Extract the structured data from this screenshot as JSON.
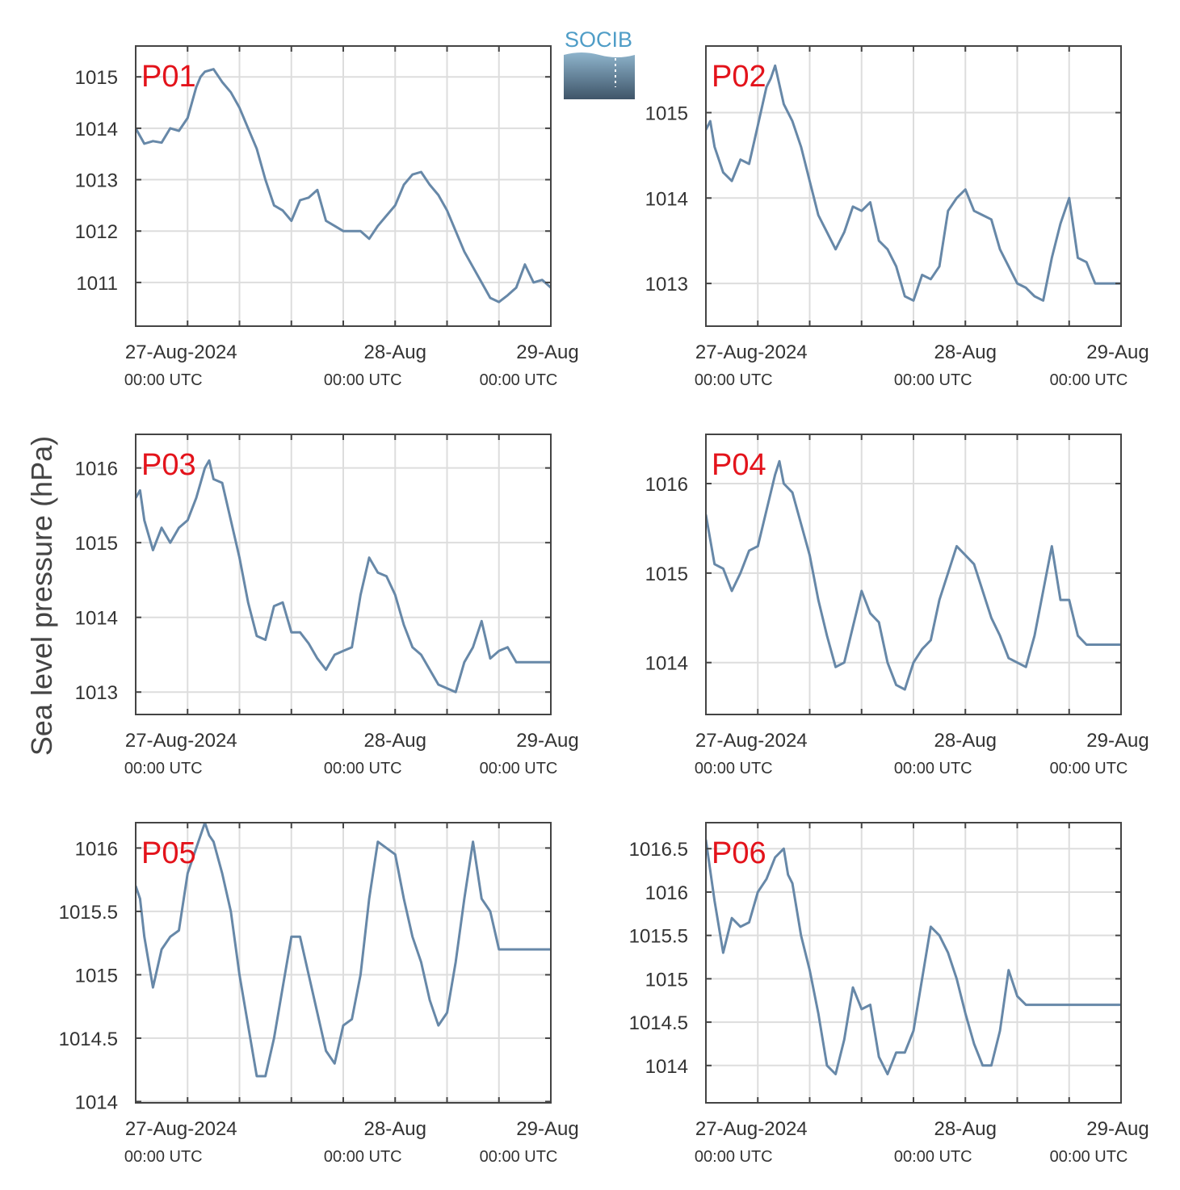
{
  "figure": {
    "ylabel": "Sea level pressure (hPa)",
    "logo_text": "SOCIB",
    "colors": {
      "line": "#6788a8",
      "panel_label": "#e3131b",
      "grid": "#dddddd",
      "frame": "#444444",
      "logo_text": "#4f9dc7",
      "logo_top": "#8eb4cc",
      "logo_bottom": "#3f5569"
    }
  },
  "x_axis": {
    "ticks": [
      {
        "date": "27-Aug-2024",
        "time": "00:00 UTC",
        "hour": 0
      },
      {
        "date": "28-Aug",
        "time": "00:00 UTC",
        "hour": 24
      },
      {
        "date": "29-Aug",
        "time": "00:00 UTC",
        "hour": 48
      }
    ]
  },
  "chart_data": [
    {
      "type": "line",
      "title": "P01",
      "x_unit": "hours since 27-Aug-2024 00:00 UTC",
      "xlim": [
        -6,
        42
      ],
      "ylim": [
        1010.15,
        1015.6
      ],
      "yticks": [
        1011,
        1012,
        1013,
        1014,
        1015
      ],
      "ytick_labels": [
        "1011",
        "1012",
        "1013",
        "1014",
        "1015"
      ],
      "grid": true,
      "series": [
        {
          "x": [
            -6,
            -5,
            -4,
            -3,
            -2,
            -1,
            0,
            1,
            1.5,
            2,
            3,
            4,
            5,
            6,
            7,
            8,
            9,
            10,
            11,
            12,
            13,
            14,
            15,
            16,
            17,
            18,
            19,
            20,
            21,
            22,
            23,
            24,
            25,
            26,
            27,
            28,
            29,
            30,
            31,
            32,
            33,
            34,
            35,
            36,
            37,
            38,
            39,
            40,
            41,
            42
          ],
          "y": [
            1014.0,
            1013.7,
            1013.75,
            1013.72,
            1014.0,
            1013.95,
            1014.2,
            1014.8,
            1015.0,
            1015.1,
            1015.15,
            1014.9,
            1014.7,
            1014.4,
            1014.0,
            1013.6,
            1013.0,
            1012.5,
            1012.4,
            1012.2,
            1012.6,
            1012.65,
            1012.8,
            1012.2,
            1012.1,
            1012.0,
            1012.0,
            1012.0,
            1011.85,
            1012.1,
            1012.3,
            1012.5,
            1012.9,
            1013.1,
            1013.15,
            1012.9,
            1012.7,
            1012.4,
            1012.0,
            1011.6,
            1011.3,
            1011.0,
            1010.7,
            1010.62,
            1010.75,
            1010.9,
            1011.35,
            1011.0,
            1011.05,
            1010.9
          ]
        }
      ]
    },
    {
      "type": "line",
      "title": "P02",
      "x_unit": "hours since 27-Aug-2024 00:00 UTC",
      "xlim": [
        -6,
        42
      ],
      "ylim": [
        1012.5,
        1015.78
      ],
      "yticks": [
        1013,
        1014,
        1015
      ],
      "ytick_labels": [
        "1013",
        "1014",
        "1015"
      ],
      "grid": true,
      "series": [
        {
          "x": [
            -6,
            -5.5,
            -5,
            -4,
            -3,
            -2,
            -1,
            0,
            1,
            1.5,
            2,
            3,
            4,
            5,
            6,
            7,
            8,
            9,
            10,
            11,
            12,
            13,
            14,
            15,
            16,
            17,
            18,
            19,
            20,
            21,
            22,
            23,
            24,
            25,
            26,
            27,
            28,
            29,
            30,
            31,
            32,
            33,
            34,
            35,
            36,
            37,
            38,
            39,
            40,
            41,
            42
          ],
          "y": [
            1014.8,
            1014.9,
            1014.6,
            1014.3,
            1014.2,
            1014.45,
            1014.4,
            1014.85,
            1015.3,
            1015.4,
            1015.55,
            1015.1,
            1014.9,
            1014.6,
            1014.2,
            1013.8,
            1013.6,
            1013.4,
            1013.6,
            1013.9,
            1013.85,
            1013.95,
            1013.5,
            1013.4,
            1013.2,
            1012.85,
            1012.8,
            1013.1,
            1013.05,
            1013.2,
            1013.85,
            1014.0,
            1014.1,
            1013.85,
            1013.8,
            1013.75,
            1013.4,
            1013.2,
            1013.0,
            1012.95,
            1012.85,
            1012.8,
            1013.3,
            1013.7,
            1014.0,
            1013.3,
            1013.25,
            1013.0,
            1013.0,
            1013.0,
            1013.0
          ]
        }
      ]
    },
    {
      "type": "line",
      "title": "P03",
      "x_unit": "hours since 27-Aug-2024 00:00 UTC",
      "xlim": [
        -6,
        42
      ],
      "ylim": [
        1012.7,
        1016.45
      ],
      "yticks": [
        1013,
        1014,
        1015,
        1016
      ],
      "ytick_labels": [
        "1013",
        "1014",
        "1015",
        "1016"
      ],
      "grid": true,
      "series": [
        {
          "x": [
            -6,
            -5.5,
            -5,
            -4,
            -3,
            -2,
            -1,
            0,
            1,
            2,
            2.5,
            3,
            4,
            5,
            6,
            7,
            8,
            9,
            10,
            11,
            12,
            13,
            14,
            15,
            16,
            17,
            18,
            19,
            20,
            21,
            22,
            23,
            24,
            25,
            26,
            27,
            28,
            29,
            30,
            31,
            32,
            33,
            34,
            35,
            36,
            37,
            38,
            39,
            40,
            41,
            42
          ],
          "y": [
            1015.6,
            1015.7,
            1015.3,
            1014.9,
            1015.2,
            1015.0,
            1015.2,
            1015.3,
            1015.6,
            1016.0,
            1016.1,
            1015.85,
            1015.8,
            1015.3,
            1014.8,
            1014.2,
            1013.75,
            1013.7,
            1014.15,
            1014.2,
            1013.8,
            1013.8,
            1013.65,
            1013.45,
            1013.3,
            1013.5,
            1013.55,
            1013.6,
            1014.3,
            1014.8,
            1014.6,
            1014.55,
            1014.3,
            1013.9,
            1013.6,
            1013.5,
            1013.3,
            1013.1,
            1013.05,
            1013.0,
            1013.4,
            1013.6,
            1013.95,
            1013.45,
            1013.55,
            1013.6,
            1013.4,
            1013.4,
            1013.4,
            1013.4,
            1013.4
          ]
        }
      ]
    },
    {
      "type": "line",
      "title": "P04",
      "x_unit": "hours since 27-Aug-2024 00:00 UTC",
      "xlim": [
        -6,
        42
      ],
      "ylim": [
        1013.42,
        1016.55
      ],
      "yticks": [
        1014,
        1015,
        1016
      ],
      "ytick_labels": [
        "1014",
        "1015",
        "1016"
      ],
      "grid": true,
      "series": [
        {
          "x": [
            -6,
            -5,
            -4,
            -3,
            -2,
            -1,
            0,
            1,
            2,
            2.5,
            3,
            4,
            5,
            6,
            7,
            8,
            9,
            10,
            11,
            12,
            13,
            14,
            15,
            16,
            17,
            18,
            19,
            20,
            21,
            22,
            23,
            24,
            25,
            26,
            27,
            28,
            29,
            30,
            31,
            32,
            33,
            34,
            35,
            36,
            37,
            38,
            39,
            40,
            41,
            42
          ],
          "y": [
            1015.65,
            1015.1,
            1015.05,
            1014.8,
            1015.0,
            1015.25,
            1015.3,
            1015.7,
            1016.1,
            1016.25,
            1016.0,
            1015.9,
            1015.55,
            1015.2,
            1014.7,
            1014.3,
            1013.95,
            1014.0,
            1014.4,
            1014.8,
            1014.55,
            1014.45,
            1014.0,
            1013.75,
            1013.7,
            1014.0,
            1014.15,
            1014.25,
            1014.7,
            1015.0,
            1015.3,
            1015.2,
            1015.1,
            1014.8,
            1014.5,
            1014.3,
            1014.05,
            1014.0,
            1013.95,
            1014.3,
            1014.8,
            1015.3,
            1014.7,
            1014.7,
            1014.3,
            1014.2,
            1014.2,
            1014.2,
            1014.2,
            1014.2
          ]
        }
      ]
    },
    {
      "type": "line",
      "title": "P05",
      "x_unit": "hours since 27-Aug-2024 00:00 UTC",
      "xlim": [
        -6,
        42
      ],
      "ylim": [
        1013.99,
        1016.2
      ],
      "yticks": [
        1014,
        1014.5,
        1015,
        1015.5,
        1016
      ],
      "ytick_labels": [
        "1014",
        "1014.5",
        "1015",
        "1015.5",
        "1016"
      ],
      "grid": true,
      "series": [
        {
          "x": [
            -6,
            -5.5,
            -5,
            -4,
            -3,
            -2,
            -1,
            0,
            1,
            2,
            2.5,
            3,
            4,
            5,
            6,
            7,
            8,
            9,
            10,
            11,
            12,
            13,
            14,
            15,
            16,
            17,
            18,
            19,
            20,
            21,
            22,
            23,
            24,
            25,
            26,
            27,
            28,
            29,
            30,
            31,
            32,
            33,
            34,
            35,
            36,
            37,
            38,
            39,
            40,
            41,
            42
          ],
          "y": [
            1015.7,
            1015.6,
            1015.3,
            1014.9,
            1015.2,
            1015.3,
            1015.35,
            1015.8,
            1016.0,
            1016.2,
            1016.1,
            1016.05,
            1015.8,
            1015.5,
            1015.0,
            1014.6,
            1014.2,
            1014.2,
            1014.5,
            1014.9,
            1015.3,
            1015.3,
            1015.0,
            1014.7,
            1014.4,
            1014.3,
            1014.6,
            1014.65,
            1015.0,
            1015.6,
            1016.05,
            1016.0,
            1015.95,
            1015.6,
            1015.3,
            1015.1,
            1014.8,
            1014.6,
            1014.7,
            1015.1,
            1015.6,
            1016.05,
            1015.6,
            1015.5,
            1015.2,
            1015.2,
            1015.2,
            1015.2,
            1015.2,
            1015.2,
            1015.2
          ]
        }
      ]
    },
    {
      "type": "line",
      "title": "P06",
      "x_unit": "hours since 27-Aug-2024 00:00 UTC",
      "xlim": [
        -6,
        42
      ],
      "ylim": [
        1013.57,
        1016.8
      ],
      "yticks": [
        1014,
        1014.5,
        1015,
        1015.5,
        1016,
        1016.5
      ],
      "ytick_labels": [
        "1014",
        "1014.5",
        "1015",
        "1015.5",
        "1016",
        "1016.5"
      ],
      "grid": true,
      "series": [
        {
          "x": [
            -6,
            -5,
            -4,
            -3,
            -2,
            -1,
            0,
            1,
            2,
            3,
            3.5,
            4,
            5,
            6,
            7,
            8,
            9,
            10,
            11,
            12,
            13,
            14,
            15,
            16,
            17,
            18,
            19,
            20,
            21,
            22,
            23,
            24,
            25,
            26,
            27,
            28,
            29,
            30,
            31,
            32,
            33,
            34,
            35,
            36,
            37,
            38,
            39,
            40,
            41,
            42
          ],
          "y": [
            1016.6,
            1015.9,
            1015.3,
            1015.7,
            1015.6,
            1015.65,
            1016.0,
            1016.15,
            1016.4,
            1016.5,
            1016.2,
            1016.1,
            1015.5,
            1015.1,
            1014.6,
            1014.0,
            1013.9,
            1014.3,
            1014.9,
            1014.65,
            1014.7,
            1014.1,
            1013.9,
            1014.15,
            1014.15,
            1014.4,
            1015.0,
            1015.6,
            1015.5,
            1015.3,
            1015.0,
            1014.6,
            1014.25,
            1014.0,
            1014.0,
            1014.4,
            1015.1,
            1014.8,
            1014.7,
            1014.7,
            1014.7,
            1014.7,
            1014.7,
            1014.7,
            1014.7,
            1014.7,
            1014.7,
            1014.7,
            1014.7,
            1014.7
          ]
        }
      ]
    }
  ]
}
